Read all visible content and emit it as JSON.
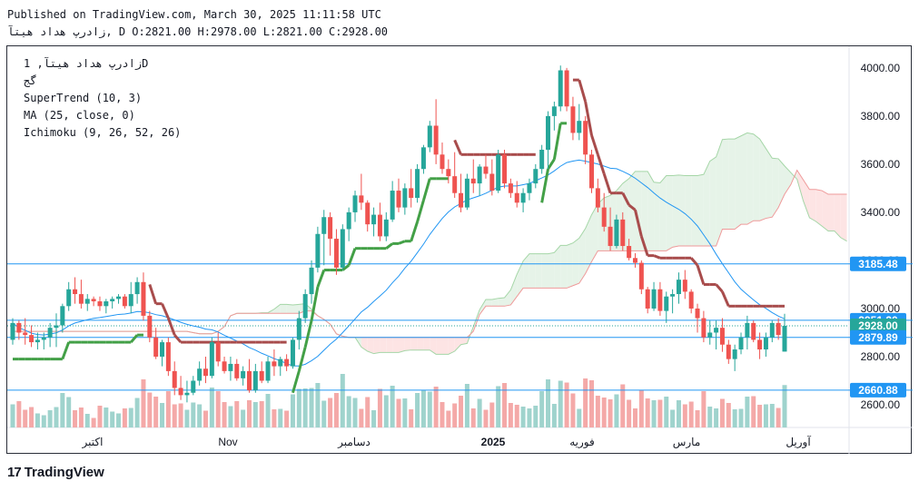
{
  "header": {
    "line1": "Published on TradingView.com, March 30, 2025 11:11:58 UTC",
    "line2": "زادرپ هداد هیتآ, D O:2821.00 H:2978.00 L:2821.00 C:2928.00"
  },
  "legend": {
    "symbol": "زادرپ هداد هیتآ, 1D",
    "exchange": "گج",
    "supertrend": "SuperTrend (10, 3)",
    "ma": "MA (25, close, 0)",
    "ichimoku": "Ichimoku (9, 26, 52, 26)"
  },
  "brand": {
    "logo_mark": "17",
    "name": "TradingView"
  },
  "colors": {
    "up": "#26a69a",
    "down": "#ef5350",
    "supertrend_up": "#43a047",
    "supertrend_down": "#a84c4c",
    "ma": "#2196f3",
    "cloud_red": "#fde4e4",
    "cloud_green": "#e6f3e8",
    "hline": "#2196f3"
  },
  "chart_data": {
    "type": "candlestick",
    "x_tick_labels": [
      "اکتبر",
      "Nov",
      "دسامبر",
      "2025",
      "فوریه",
      "مارس",
      "آوریل"
    ],
    "y_tick_labels": [
      "2600.00",
      "2800.00",
      "3000.00",
      "3200.00",
      "3400.00",
      "3600.00",
      "3800.00",
      "4000.00"
    ],
    "y_ticks": [
      2600,
      2800,
      3000,
      3200,
      3400,
      3600,
      3800,
      4000
    ],
    "ylim": [
      2600,
      4090
    ],
    "price_labels": [
      {
        "text": "3185.48",
        "value": 3185.48
      },
      {
        "text": "2951.20",
        "value": 2951.2
      },
      {
        "text": "2928.00",
        "value": 2928.0
      },
      {
        "text": "2879.89",
        "value": 2879.89
      },
      {
        "text": "2660.88",
        "value": 2660.88
      }
    ],
    "last": {
      "open": 2821,
      "high": 2978,
      "low": 2821,
      "close": 2928
    },
    "candles_ohlc": [
      [
        2870,
        2960,
        2850,
        2940
      ],
      [
        2940,
        2950,
        2870,
        2900
      ],
      [
        2900,
        2960,
        2850,
        2890
      ],
      [
        2890,
        2930,
        2840,
        2860
      ],
      [
        2860,
        2900,
        2830,
        2870
      ],
      [
        2870,
        2900,
        2830,
        2880
      ],
      [
        2880,
        2940,
        2840,
        2920
      ],
      [
        2920,
        2980,
        2840,
        2930
      ],
      [
        2930,
        3020,
        2900,
        3010
      ],
      [
        3010,
        3110,
        2990,
        3080
      ],
      [
        3080,
        3130,
        3020,
        3060
      ],
      [
        3060,
        3120,
        3000,
        3020
      ],
      [
        3020,
        3060,
        2990,
        3040
      ],
      [
        3040,
        3050,
        3010,
        3030
      ],
      [
        3030,
        3050,
        2990,
        3010
      ],
      [
        3010,
        3040,
        2980,
        3030
      ],
      [
        3030,
        3050,
        3000,
        3040
      ],
      [
        3040,
        3060,
        3020,
        3050
      ],
      [
        3050,
        3060,
        3000,
        3010
      ],
      [
        3010,
        3110,
        2980,
        3060
      ],
      [
        3060,
        3130,
        3020,
        3110
      ],
      [
        3110,
        3150,
        2950,
        2970
      ],
      [
        2970,
        2990,
        2860,
        2880
      ],
      [
        2880,
        2920,
        2790,
        2800
      ],
      [
        2800,
        2870,
        2760,
        2860
      ],
      [
        2860,
        2880,
        2720,
        2740
      ],
      [
        2740,
        2780,
        2640,
        2670
      ],
      [
        2670,
        2720,
        2620,
        2640
      ],
      [
        2640,
        2700,
        2610,
        2650
      ],
      [
        2650,
        2720,
        2640,
        2700
      ],
      [
        2700,
        2780,
        2680,
        2750
      ],
      [
        2750,
        2800,
        2690,
        2720
      ],
      [
        2720,
        2880,
        2710,
        2860
      ],
      [
        2860,
        2900,
        2760,
        2780
      ],
      [
        2780,
        2800,
        2730,
        2740
      ],
      [
        2740,
        2800,
        2700,
        2770
      ],
      [
        2770,
        2790,
        2700,
        2710
      ],
      [
        2710,
        2760,
        2680,
        2740
      ],
      [
        2740,
        2790,
        2650,
        2660
      ],
      [
        2660,
        2770,
        2650,
        2740
      ],
      [
        2740,
        2780,
        2690,
        2700
      ],
      [
        2700,
        2800,
        2690,
        2780
      ],
      [
        2780,
        2830,
        2720,
        2760
      ],
      [
        2760,
        2800,
        2720,
        2790
      ],
      [
        2790,
        2810,
        2740,
        2760
      ],
      [
        2760,
        2880,
        2750,
        2870
      ],
      [
        2870,
        2990,
        2830,
        2960
      ],
      [
        2960,
        3080,
        2940,
        3060
      ],
      [
        3060,
        3200,
        3020,
        3170
      ],
      [
        3170,
        3340,
        3150,
        3310
      ],
      [
        3310,
        3410,
        3180,
        3380
      ],
      [
        3380,
        3400,
        3220,
        3290
      ],
      [
        3290,
        3330,
        3140,
        3170
      ],
      [
        3170,
        3350,
        3160,
        3330
      ],
      [
        3330,
        3420,
        3280,
        3400
      ],
      [
        3400,
        3490,
        3360,
        3470
      ],
      [
        3470,
        3560,
        3410,
        3440
      ],
      [
        3440,
        3450,
        3320,
        3350
      ],
      [
        3350,
        3420,
        3300,
        3390
      ],
      [
        3390,
        3440,
        3280,
        3300
      ],
      [
        3300,
        3400,
        3280,
        3370
      ],
      [
        3370,
        3530,
        3360,
        3490
      ],
      [
        3490,
        3540,
        3400,
        3420
      ],
      [
        3420,
        3520,
        3390,
        3500
      ],
      [
        3500,
        3580,
        3420,
        3460
      ],
      [
        3460,
        3600,
        3440,
        3580
      ],
      [
        3580,
        3680,
        3560,
        3670
      ],
      [
        3670,
        3780,
        3650,
        3760
      ],
      [
        3760,
        3870,
        3600,
        3640
      ],
      [
        3640,
        3690,
        3560,
        3580
      ],
      [
        3580,
        3620,
        3520,
        3550
      ],
      [
        3550,
        3650,
        3460,
        3480
      ],
      [
        3480,
        3560,
        3400,
        3420
      ],
      [
        3420,
        3560,
        3410,
        3540
      ],
      [
        3540,
        3620,
        3480,
        3520
      ],
      [
        3520,
        3600,
        3470,
        3590
      ],
      [
        3590,
        3640,
        3540,
        3560
      ],
      [
        3560,
        3620,
        3470,
        3490
      ],
      [
        3490,
        3660,
        3480,
        3640
      ],
      [
        3640,
        3660,
        3500,
        3520
      ],
      [
        3520,
        3540,
        3460,
        3480
      ],
      [
        3480,
        3530,
        3420,
        3440
      ],
      [
        3440,
        3500,
        3400,
        3480
      ],
      [
        3480,
        3540,
        3450,
        3520
      ],
      [
        3520,
        3600,
        3500,
        3580
      ],
      [
        3580,
        3680,
        3560,
        3660
      ],
      [
        3660,
        3820,
        3580,
        3800
      ],
      [
        3800,
        3860,
        3740,
        3840
      ],
      [
        3840,
        4010,
        3820,
        3990
      ],
      [
        3990,
        4000,
        3820,
        3840
      ],
      [
        3840,
        3880,
        3700,
        3730
      ],
      [
        3730,
        3850,
        3700,
        3780
      ],
      [
        3780,
        3800,
        3600,
        3640
      ],
      [
        3640,
        3660,
        3480,
        3500
      ],
      [
        3500,
        3540,
        3400,
        3420
      ],
      [
        3420,
        3480,
        3320,
        3340
      ],
      [
        3340,
        3420,
        3240,
        3260
      ],
      [
        3260,
        3390,
        3250,
        3370
      ],
      [
        3370,
        3400,
        3240,
        3260
      ],
      [
        3260,
        3290,
        3200,
        3210
      ],
      [
        3210,
        3230,
        3170,
        3190
      ],
      [
        3190,
        3200,
        3060,
        3080
      ],
      [
        3080,
        3090,
        2980,
        3000
      ],
      [
        3000,
        3110,
        2990,
        3080
      ],
      [
        3080,
        3110,
        2970,
        2990
      ],
      [
        2990,
        3070,
        2940,
        3050
      ],
      [
        3050,
        3080,
        2980,
        3060
      ],
      [
        3060,
        3150,
        3020,
        3120
      ],
      [
        3120,
        3160,
        3040,
        3070
      ],
      [
        3070,
        3080,
        2980,
        3000
      ],
      [
        3000,
        3020,
        2900,
        2960
      ],
      [
        2960,
        2990,
        2860,
        2880
      ],
      [
        2880,
        2950,
        2850,
        2900
      ],
      [
        2900,
        2950,
        2830,
        2920
      ],
      [
        2920,
        2960,
        2820,
        2850
      ],
      [
        2850,
        2870,
        2770,
        2790
      ],
      [
        2790,
        2850,
        2740,
        2830
      ],
      [
        2830,
        2900,
        2810,
        2880
      ],
      [
        2880,
        2970,
        2830,
        2940
      ],
      [
        2940,
        2950,
        2860,
        2870
      ],
      [
        2870,
        2900,
        2790,
        2830
      ],
      [
        2830,
        2900,
        2800,
        2880
      ],
      [
        2880,
        2950,
        2860,
        2940
      ],
      [
        2940,
        2960,
        2870,
        2890
      ],
      [
        2821,
        2978,
        2821,
        2928
      ]
    ]
  }
}
